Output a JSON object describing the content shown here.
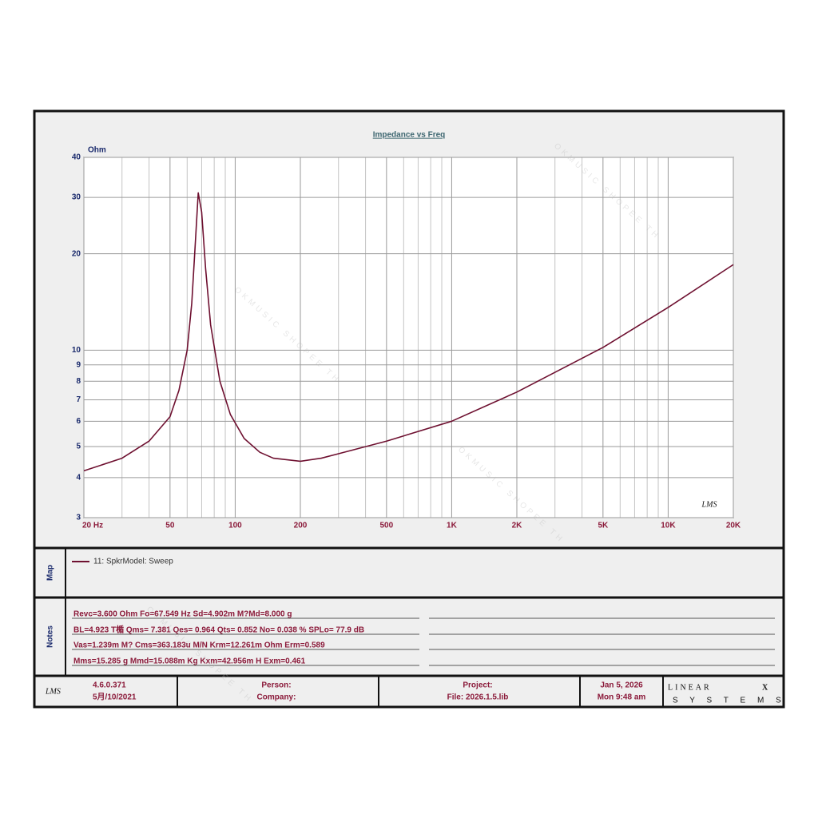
{
  "chart_data": {
    "type": "line",
    "title": "Impedance vs Freq",
    "y_unit": "Ohm",
    "logo": "LMS",
    "x": [
      20,
      30,
      40,
      50,
      55,
      60,
      63,
      65,
      67.5,
      70,
      73,
      77,
      85,
      95,
      110,
      130,
      150,
      200,
      250,
      300,
      500,
      1000,
      2000,
      5000,
      10000,
      20000
    ],
    "series": [
      {
        "name": "11: SpkrModel: Sweep",
        "color": "#6e1030",
        "values": [
          4.2,
          4.6,
          5.2,
          6.2,
          7.5,
          10,
          14,
          20,
          31,
          27,
          18,
          12,
          8,
          6.3,
          5.3,
          4.8,
          4.6,
          4.5,
          4.6,
          4.75,
          5.2,
          6.0,
          7.4,
          10.2,
          13.6,
          18.5
        ]
      }
    ],
    "xlim": [
      20,
      20000
    ],
    "ylim": [
      3,
      40
    ],
    "xscale": "log",
    "yscale": "log",
    "grid": true,
    "xticks": [
      {
        "value": 20,
        "label": "20  Hz"
      },
      50,
      100,
      200,
      500,
      {
        "value": 1000,
        "label": "1K"
      },
      {
        "value": 2000,
        "label": "2K"
      },
      {
        "value": 5000,
        "label": "5K"
      },
      {
        "value": 10000,
        "label": "10K"
      },
      {
        "value": 20000,
        "label": "20K"
      }
    ],
    "xminor": [
      30,
      40,
      60,
      70,
      80,
      90,
      300,
      400,
      600,
      700,
      800,
      900,
      3000,
      4000,
      6000,
      7000,
      8000,
      9000
    ],
    "yticks": [
      3,
      4,
      5,
      6,
      7,
      8,
      9,
      10,
      20,
      30,
      40
    ]
  },
  "panel": {
    "map_label": "Map",
    "notes_label": "Notes",
    "notes": [
      "Revc=3.600 Ohm  Fo=67.549 Hz  Sd=4.902m M?Md=8.000 g",
      "BL=4.923 T楯  Qms= 7.381  Qes= 0.964  Qts= 0.852  No= 0.038 %  SPLo= 77.9 dB",
      "Vas=1.239m M? Cms=363.183u M/N  Krm=12.261m Ohm  Erm=0.589",
      "Mms=15.285 g  Mmd=15.088m Kg  Kxm=42.956m H  Exm=0.461"
    ]
  },
  "footer": {
    "logo": "LMS",
    "version": "4.6.0.371",
    "date": "5月/10/2021",
    "person": "Person:",
    "company": "Company:",
    "project": "Project:",
    "file": "File: 2026.1.5.lib",
    "day": "Jan  5, 2026",
    "time": "Mon  9:48 am",
    "brand": "LINEAR",
    "brand_x": "X",
    "brand_sub": "S  Y  S  T  E  M  S"
  },
  "watermark": "OKMUSIC SHOPEE TH"
}
